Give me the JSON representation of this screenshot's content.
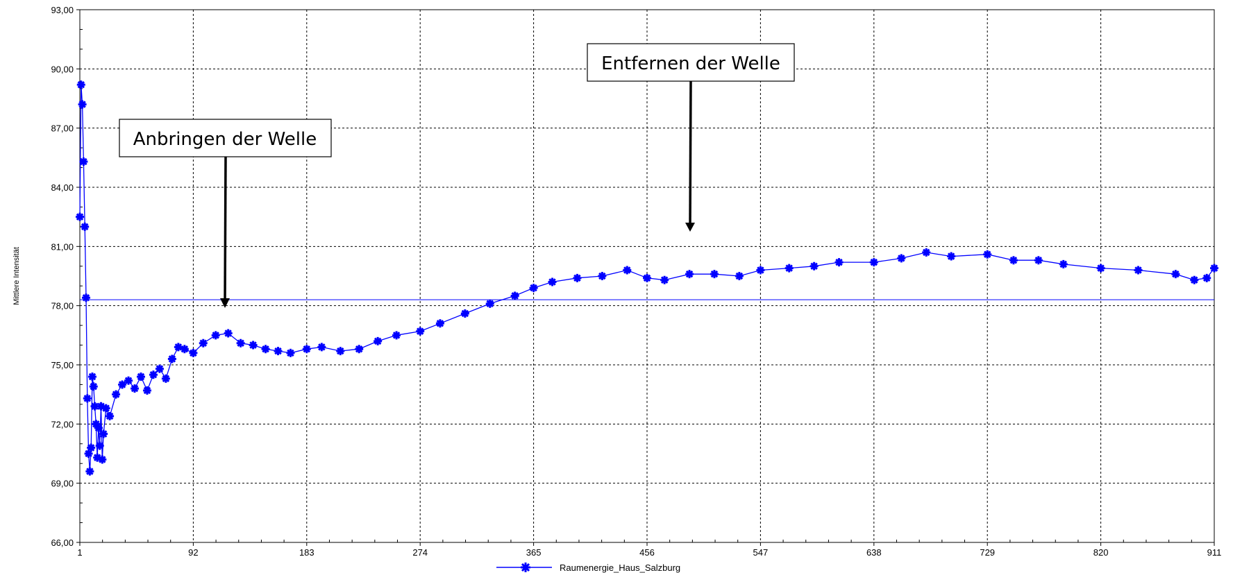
{
  "chart_data": {
    "type": "line",
    "title": "",
    "xlabel": "",
    "ylabel": "Mittlere Intensität",
    "xlim": [
      1,
      911
    ],
    "ylim": [
      66,
      93
    ],
    "x_ticks": [
      "1",
      "92",
      "183",
      "274",
      "365",
      "456",
      "547",
      "638",
      "729",
      "820",
      "911"
    ],
    "y_ticks": [
      "66,00",
      "69,00",
      "72,00",
      "75,00",
      "78,00",
      "81,00",
      "84,00",
      "87,00",
      "90,00",
      "93,00"
    ],
    "grid": true,
    "reference_line": 78.3,
    "legend": {
      "position": "bottom-center"
    },
    "series": [
      {
        "name": "Raumenergie_Haus_Salzburg",
        "color": "#0000ff",
        "marker": "star",
        "x": [
          1,
          2,
          3,
          4,
          5,
          6,
          7,
          8,
          9,
          10,
          11,
          12,
          13,
          14,
          15,
          16,
          17,
          18,
          19,
          20,
          22,
          25,
          30,
          35,
          40,
          45,
          50,
          55,
          60,
          65,
          70,
          75,
          80,
          85,
          92,
          100,
          110,
          120,
          130,
          140,
          150,
          160,
          170,
          183,
          195,
          210,
          225,
          240,
          255,
          274,
          290,
          310,
          330,
          350,
          365,
          380,
          400,
          420,
          440,
          456,
          470,
          490,
          510,
          530,
          547,
          570,
          590,
          610,
          638,
          660,
          680,
          700,
          729,
          750,
          770,
          790,
          820,
          850,
          880,
          895,
          905,
          911
        ],
        "y": [
          82.5,
          89.2,
          88.2,
          85.3,
          82,
          78.4,
          73.3,
          70.5,
          69.6,
          70.8,
          74.4,
          73.9,
          72.9,
          72,
          70.3,
          71.8,
          70.9,
          72.9,
          70.2,
          71.5,
          72.8,
          72.4,
          73.5,
          74,
          74.2,
          73.8,
          74.4,
          73.7,
          74.5,
          74.8,
          74.3,
          75.3,
          75.9,
          75.8,
          75.6,
          76.1,
          76.5,
          76.6,
          76.1,
          76,
          75.8,
          75.7,
          75.6,
          75.8,
          75.9,
          75.7,
          75.8,
          76.2,
          76.5,
          76.7,
          77.1,
          77.6,
          78.1,
          78.5,
          78.9,
          79.2,
          79.4,
          79.5,
          79.8,
          79.4,
          79.3,
          79.6,
          79.6,
          79.5,
          79.8,
          79.9,
          80,
          80.2,
          80.2,
          80.4,
          80.7,
          80.5,
          80.6,
          80.3,
          80.3,
          80.1,
          79.9,
          79.8,
          79.6,
          79.3,
          79.4,
          79.9
        ]
      }
    ],
    "annotations": [
      {
        "text": "Anbringen der Welle",
        "target_x": 120,
        "target_y": 78.0
      },
      {
        "text": "Entfernen der Welle",
        "target_x": 490,
        "target_y": 80.9
      }
    ]
  }
}
